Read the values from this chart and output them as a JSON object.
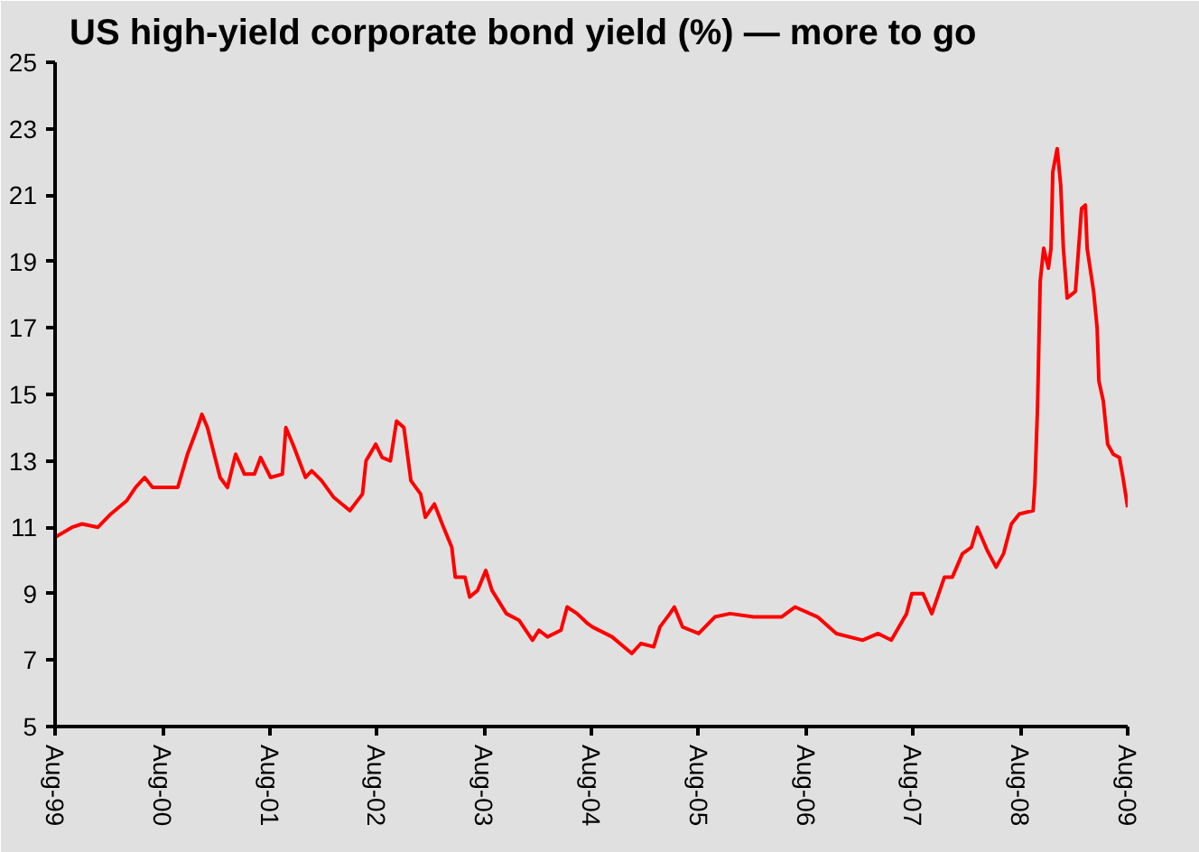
{
  "chart_data": {
    "type": "line",
    "title": "US high-yield corporate bond yield (%) — more to go",
    "x": [
      "1999-08-01",
      "1999-09-28",
      "1999-11-01",
      "1999-12-25",
      "2000-02-07",
      "2000-04-01",
      "2000-05-01",
      "2000-06-01",
      "2000-06-28",
      "2000-09-22",
      "2000-10-25",
      "2000-11-28",
      "2000-12-13",
      "2001-01-01",
      "2001-02-13",
      "2001-03-10",
      "2001-04-07",
      "2001-05-07",
      "2001-06-10",
      "2001-07-01",
      "2001-08-04",
      "2001-09-13",
      "2001-09-25",
      "2001-10-19",
      "2001-12-01",
      "2001-12-22",
      "2002-01-25",
      "2002-03-07",
      "2002-05-01",
      "2002-06-13",
      "2002-06-25",
      "2002-07-28",
      "2002-08-19",
      "2002-09-16",
      "2002-10-07",
      "2002-11-01",
      "2002-11-25",
      "2002-12-28",
      "2003-01-13",
      "2003-02-13",
      "2003-03-16",
      "2003-04-13",
      "2003-04-25",
      "2003-05-28",
      "2003-06-13",
      "2003-07-10",
      "2003-08-07",
      "2003-08-28",
      "2003-10-16",
      "2003-11-28",
      "2004-01-13",
      "2004-02-04",
      "2004-03-04",
      "2004-04-19",
      "2004-05-10",
      "2004-06-13",
      "2004-07-19",
      "2004-08-04",
      "2004-10-10",
      "2004-12-16",
      "2005-01-16",
      "2005-03-01",
      "2005-03-22",
      "2005-04-25",
      "2005-05-10",
      "2005-06-07",
      "2005-08-01",
      "2005-09-25",
      "2005-11-16",
      "2006-02-04",
      "2006-05-10",
      "2006-06-25",
      "2006-09-10",
      "2006-11-13",
      "2007-02-10",
      "2007-04-04",
      "2007-05-19",
      "2007-07-10",
      "2007-07-28",
      "2007-09-04",
      "2007-10-04",
      "2007-11-16",
      "2007-12-13",
      "2008-01-16",
      "2008-02-16",
      "2008-03-07",
      "2008-04-10",
      "2008-05-10",
      "2008-06-04",
      "2008-07-01",
      "2008-07-28",
      "2008-09-13",
      "2008-09-19",
      "2008-09-28",
      "2008-10-07",
      "2008-10-19",
      "2008-11-04",
      "2008-11-13",
      "2008-11-19",
      "2008-12-04",
      "2008-12-16",
      "2008-12-25",
      "2009-01-07",
      "2009-02-04",
      "2009-02-25",
      "2009-03-10",
      "2009-03-16",
      "2009-04-07",
      "2009-04-19",
      "2009-04-25",
      "2009-05-10",
      "2009-05-25",
      "2009-06-13",
      "2009-07-04",
      "2009-07-16",
      "2009-08-01"
    ],
    "series": [
      {
        "color": "#ff0000",
        "values": [
          10.7,
          11.0,
          11.1,
          11.0,
          11.4,
          11.8,
          12.2,
          12.5,
          12.2,
          12.2,
          13.2,
          14.0,
          14.4,
          14.0,
          12.5,
          12.2,
          13.2,
          12.6,
          12.6,
          13.1,
          12.5,
          12.6,
          14.0,
          13.5,
          12.5,
          12.7,
          12.4,
          11.9,
          11.5,
          12.0,
          13.0,
          13.5,
          13.1,
          13.0,
          14.2,
          14.0,
          12.4,
          12.0,
          11.3,
          11.7,
          11.0,
          10.4,
          9.5,
          9.5,
          8.9,
          9.1,
          9.7,
          9.1,
          8.4,
          8.2,
          7.6,
          7.9,
          7.7,
          7.9,
          8.6,
          8.4,
          8.1,
          8.0,
          7.7,
          7.2,
          7.5,
          7.4,
          8.0,
          8.4,
          8.6,
          8.0,
          7.8,
          8.3,
          8.4,
          8.3,
          8.3,
          8.6,
          8.3,
          7.8,
          7.6,
          7.8,
          7.6,
          8.4,
          9.0,
          9.0,
          8.4,
          9.5,
          9.5,
          10.2,
          10.4,
          11.0,
          10.3,
          9.8,
          10.2,
          11.1,
          11.4,
          11.5,
          12.3,
          14.6,
          18.4,
          19.4,
          18.8,
          19.4,
          21.7,
          22.4,
          21.3,
          19.4,
          17.9,
          18.1,
          20.6,
          20.7,
          19.4,
          18.1,
          17.0,
          15.4,
          14.8,
          13.5,
          13.2,
          13.1,
          12.5,
          11.6
        ]
      }
    ],
    "xlim": [
      "1999-08-01",
      "2009-08-01"
    ],
    "xticks": [
      {
        "value": "1999-08-01",
        "label": "Aug-99"
      },
      {
        "value": "2000-08-01",
        "label": "Aug-00"
      },
      {
        "value": "2001-08-01",
        "label": "Aug-01"
      },
      {
        "value": "2002-08-01",
        "label": "Aug-02"
      },
      {
        "value": "2003-08-01",
        "label": "Aug-03"
      },
      {
        "value": "2004-08-01",
        "label": "Aug-04"
      },
      {
        "value": "2005-08-01",
        "label": "Aug-05"
      },
      {
        "value": "2006-08-01",
        "label": "Aug-06"
      },
      {
        "value": "2007-08-01",
        "label": "Aug-07"
      },
      {
        "value": "2008-08-01",
        "label": "Aug-08"
      },
      {
        "value": "2009-08-01",
        "label": "Aug-09"
      }
    ],
    "ylim": [
      5,
      25
    ],
    "yticks": [
      5,
      7,
      9,
      11,
      13,
      15,
      17,
      19,
      21,
      23,
      25
    ]
  }
}
